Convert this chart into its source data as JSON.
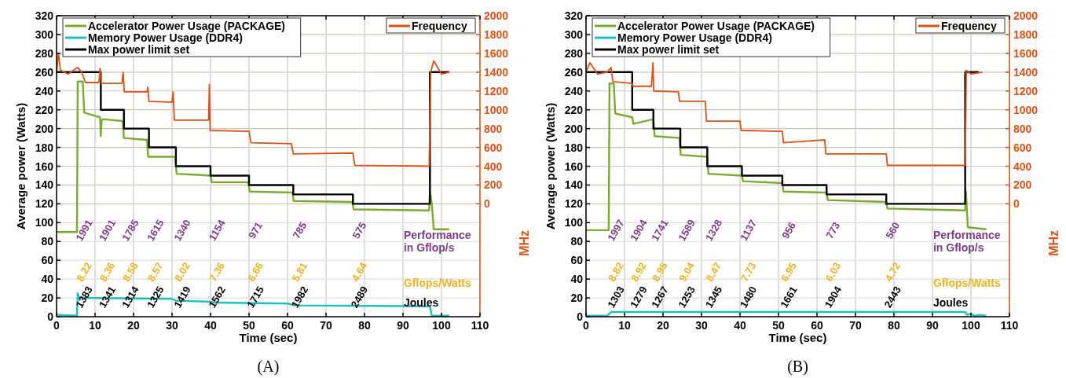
{
  "chart_data": [
    {
      "type": "line",
      "title": "(A)",
      "xlabel": "Time (sec)",
      "ylabel": "Average power (Watts)",
      "y2label": "MHz",
      "xlim": [
        0,
        110
      ],
      "xticks": [
        0,
        10,
        20,
        30,
        40,
        50,
        60,
        70,
        80,
        90,
        100,
        110
      ],
      "ylim": [
        0,
        320
      ],
      "yticks": [
        0,
        20,
        40,
        60,
        80,
        100,
        120,
        140,
        160,
        180,
        200,
        220,
        240,
        260,
        280,
        300,
        320
      ],
      "y2lim": [
        -1200,
        2000
      ],
      "y2ticks": [
        0,
        200,
        400,
        600,
        800,
        1000,
        1200,
        1400,
        1600,
        1800,
        2000
      ],
      "grid": true,
      "legend": "top left",
      "line_style": "solid",
      "marker": "none",
      "series": [
        {
          "name": "Accelerator Power Usage (PACKAGE)",
          "color": "#77ac30",
          "x": [
            0,
            5.3,
            5.5,
            6.8,
            7.2,
            11.3,
            11.5,
            11.7,
            12,
            17.2,
            17.5,
            23.5,
            23.8,
            30.8,
            31.2,
            40,
            40.3,
            49.8,
            50.2,
            61.3,
            61.6,
            76.8,
            77.2,
            96.8,
            97,
            97.5,
            98,
            102
          ],
          "values": [
            90,
            90,
            250,
            250,
            217,
            212,
            192,
            208,
            210,
            208,
            190,
            188,
            170,
            170,
            152,
            150,
            143,
            143,
            133,
            132,
            123,
            122,
            114,
            113,
            133,
            120,
            93,
            93
          ]
        },
        {
          "name": "Memory Power Usage (DDR4)",
          "color": "#1fbfbf",
          "x": [
            0,
            5.3,
            5.5,
            5.8,
            6.5,
            30,
            31,
            40,
            41,
            60,
            62,
            97,
            97.5,
            102
          ],
          "values": [
            2,
            1,
            25,
            20,
            20,
            19,
            17,
            16,
            15,
            14,
            12,
            11,
            1,
            1
          ]
        },
        {
          "name": "Max power limit set",
          "color": "#000000",
          "x": [
            0,
            11.5,
            11.5,
            17.5,
            17.5,
            24,
            24,
            31,
            31,
            40,
            40,
            50,
            50,
            61.5,
            61.5,
            77,
            77,
            97,
            97,
            102
          ],
          "values": [
            260,
            260,
            220,
            220,
            200,
            200,
            180,
            180,
            160,
            160,
            150,
            150,
            140,
            140,
            130,
            130,
            120,
            120,
            260,
            260
          ]
        },
        {
          "name": "Frequency",
          "color": "#d95319",
          "axis": "y2",
          "x": [
            0,
            0.5,
            1,
            3,
            5.5,
            6.5,
            7.5,
            11,
            11.3,
            11.6,
            17,
            17.3,
            17.6,
            23.5,
            23.7,
            24,
            30,
            30.3,
            30.6,
            39.5,
            39.7,
            39.9,
            50,
            50.5,
            61,
            61.5,
            77,
            77.5,
            96.8,
            97.2,
            98,
            100,
            102
          ],
          "values": [
            1400,
            1600,
            1420,
            1380,
            1450,
            1400,
            1290,
            1290,
            1440,
            1280,
            1280,
            1400,
            1190,
            1190,
            1240,
            1090,
            1080,
            1190,
            890,
            890,
            1270,
            780,
            770,
            650,
            640,
            530,
            540,
            410,
            400,
            1400,
            1520,
            1380,
            1400
          ]
        }
      ],
      "annotations": [
        "1991",
        "1901",
        "1785",
        "1615",
        "1340",
        "1154",
        "971",
        "785",
        "575",
        "Performance\nin Gflop/s",
        "8.22",
        "8.36",
        "8.58",
        "8.57",
        "8.02",
        "7.36",
        "6.66",
        "5.81",
        "4.64",
        "Gflops/Watts",
        "1383",
        "1341",
        "1314",
        "1325",
        "1419",
        "1562",
        "1715",
        "1982",
        "2489",
        "Joules"
      ]
    },
    {
      "type": "line",
      "title": "(B)",
      "xlabel": "Time (sec)",
      "ylabel": "Average power (Watts)",
      "y2label": "MHz",
      "xlim": [
        0,
        110
      ],
      "xticks": [
        0,
        10,
        20,
        30,
        40,
        50,
        60,
        70,
        80,
        90,
        100,
        110
      ],
      "ylim": [
        0,
        320
      ],
      "yticks": [
        0,
        20,
        40,
        60,
        80,
        100,
        120,
        140,
        160,
        180,
        200,
        220,
        240,
        260,
        280,
        300,
        320
      ],
      "y2lim": [
        -1200,
        2000
      ],
      "y2ticks": [
        0,
        200,
        400,
        600,
        800,
        1000,
        1200,
        1400,
        1600,
        1800,
        2000
      ],
      "grid": true,
      "legend": "top left",
      "line_style": "solid",
      "marker": "none",
      "series": [
        {
          "name": "Accelerator Power Usage (PACKAGE)",
          "color": "#77ac30",
          "x": [
            0,
            5.9,
            6.1,
            7.2,
            7.6,
            12,
            12.3,
            17.5,
            17.8,
            24.3,
            24.6,
            31.5,
            31.8,
            40.5,
            40.8,
            51,
            51.3,
            62.5,
            62.8,
            78,
            78.3,
            98.5,
            98.7,
            99.2,
            104
          ],
          "values": [
            92,
            92,
            248,
            248,
            216,
            212,
            205,
            210,
            192,
            190,
            172,
            170,
            152,
            150,
            144,
            142,
            133,
            132,
            124,
            122,
            115,
            113,
            133,
            95,
            93
          ]
        },
        {
          "name": "Memory Power Usage (DDR4)",
          "color": "#1fbfbf",
          "x": [
            0,
            5.5,
            6.5,
            98.5,
            99,
            100,
            101,
            102,
            104
          ],
          "values": [
            1,
            1,
            5,
            5,
            2,
            3,
            1,
            2,
            1
          ]
        },
        {
          "name": "Max power limit set",
          "color": "#000000",
          "x": [
            0,
            12,
            12,
            17.5,
            17.5,
            24.5,
            24.5,
            31.5,
            31.5,
            40.5,
            40.5,
            51,
            51,
            62.5,
            62.5,
            78,
            78,
            98.5,
            98.5,
            102
          ],
          "values": [
            260,
            260,
            220,
            220,
            200,
            200,
            180,
            180,
            160,
            160,
            150,
            150,
            140,
            140,
            130,
            130,
            120,
            120,
            260,
            260
          ]
        },
        {
          "name": "Frequency",
          "color": "#d95319",
          "axis": "y2",
          "x": [
            0,
            1,
            3,
            5.5,
            6.5,
            7,
            12,
            12.2,
            17,
            17.4,
            17.6,
            24,
            24.3,
            31,
            31.3,
            40,
            40.3,
            51,
            51.3,
            62,
            62.3,
            78,
            78.3,
            98.5,
            98.8,
            100,
            103
          ],
          "values": [
            1400,
            1500,
            1380,
            1400,
            1450,
            1300,
            1280,
            1250,
            1250,
            1500,
            1200,
            1190,
            1090,
            1090,
            880,
            880,
            780,
            770,
            650,
            680,
            530,
            530,
            410,
            410,
            1420,
            1380,
            1400
          ]
        }
      ],
      "annotations": [
        "1997",
        "1904",
        "1741",
        "1589",
        "1328",
        "1137",
        "956",
        "773",
        "560",
        "Performance\nin Gflop/s",
        "8.82",
        "8.92",
        "8.95",
        "9.04",
        "8.47",
        "7.73",
        "6.95",
        "6.03",
        "4.72",
        "Gflops/Watts",
        "1303",
        "1279",
        "1267",
        "1253",
        "1345",
        "1480",
        "1661",
        "1904",
        "2443",
        "Joules"
      ]
    }
  ]
}
